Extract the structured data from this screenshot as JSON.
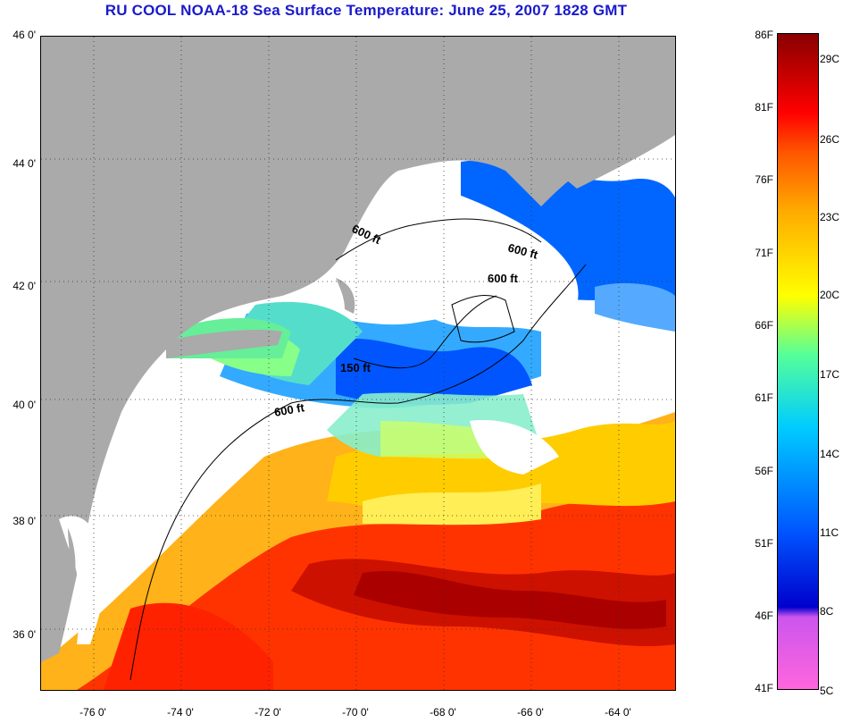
{
  "title": "RU COOL  NOAA-18  Sea Surface Temperature:  June 25, 2007 1828 GMT",
  "lat_labels": [
    "46 0'",
    "44 0'",
    "42 0'",
    "40 0'",
    "38 0'",
    "36 0'"
  ],
  "lon_labels": [
    "-76 0'",
    "-74 0'",
    "-72 0'",
    "-70 0'",
    "-68 0'",
    "-66 0'",
    "-64 0'"
  ],
  "contours": [
    "600 ft",
    "600 ft",
    "600 ft",
    "150 ft",
    "600 ft"
  ],
  "colorbar": {
    "fahrenheit": [
      "86F",
      "81F",
      "76F",
      "71F",
      "66F",
      "61F",
      "56F",
      "51F",
      "46F",
      "41F"
    ],
    "celsius": [
      "29C",
      "26C",
      "23C",
      "20C",
      "17C",
      "14C",
      "11C",
      "8C",
      "5C"
    ]
  },
  "colors": {
    "land": "#aaaaaa",
    "cloud": "#ffffff",
    "title": "#1a1acc",
    "cold": "#0033ff",
    "cool": "#55ccff",
    "mid": "#ffdd00",
    "warm": "#ff3300",
    "hot": "#aa0000"
  }
}
